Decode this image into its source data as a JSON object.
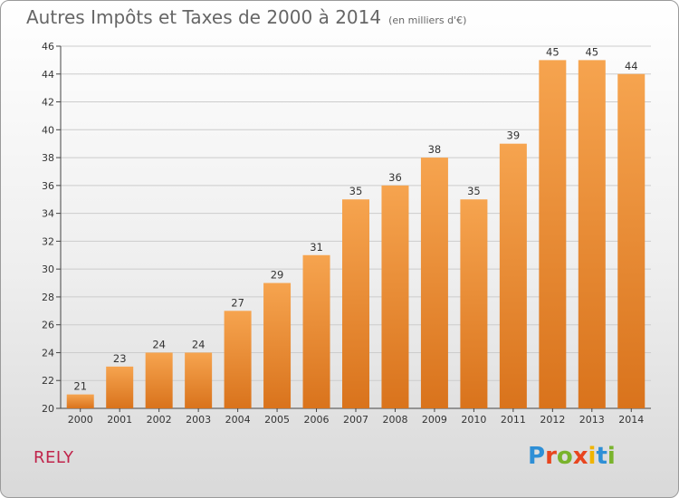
{
  "title": {
    "main": "Autres Impôts et Taxes de 2000 à 2014",
    "unit": "(en milliers d'€)"
  },
  "place": "RELY",
  "logo": {
    "text": "Proxiti",
    "letter_colors": [
      "#2e8fd6",
      "#e8451e",
      "#79b32c",
      "#e8451e",
      "#f0b400",
      "#2e8fd6",
      "#79b32c"
    ]
  },
  "colors": {
    "bar_top": "#f6a44f",
    "bar_bottom": "#d9731c",
    "grid": "#cccccc",
    "axis": "#444444"
  },
  "chart_data": {
    "type": "bar",
    "title": "Autres Impôts et Taxes de 2000 à 2014",
    "subtitle": "(en milliers d'€)",
    "xlabel": "",
    "ylabel": "",
    "categories": [
      "2000",
      "2001",
      "2002",
      "2003",
      "2004",
      "2005",
      "2006",
      "2007",
      "2008",
      "2009",
      "2010",
      "2011",
      "2012",
      "2013",
      "2014"
    ],
    "values": [
      21,
      23,
      24,
      24,
      27,
      29,
      31,
      35,
      36,
      38,
      35,
      39,
      45,
      45,
      44
    ],
    "ylim": [
      20,
      46
    ],
    "yticks": [
      20,
      22,
      24,
      26,
      28,
      30,
      32,
      34,
      36,
      38,
      40,
      42,
      44,
      46
    ],
    "grid": true,
    "legend": "none"
  }
}
